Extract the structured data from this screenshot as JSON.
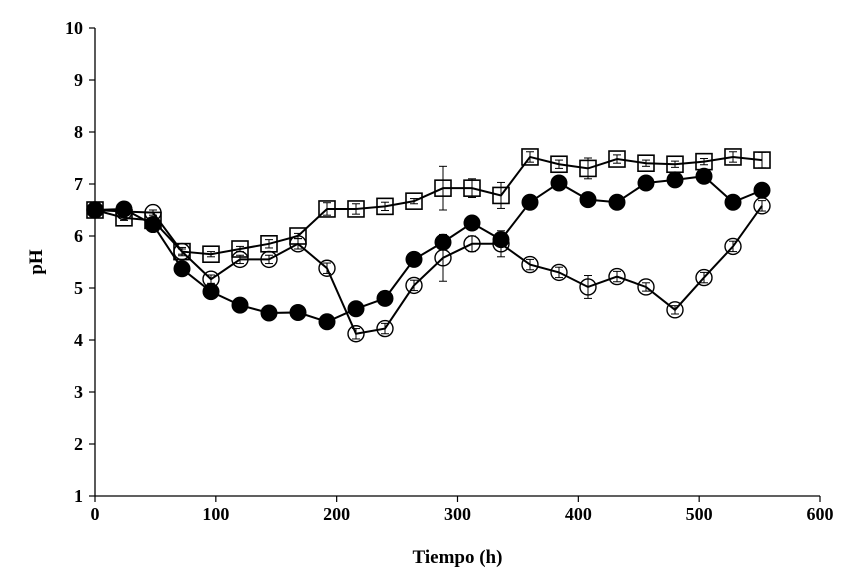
{
  "chart_data": {
    "type": "line",
    "title": "",
    "xlabel": "Tiempo (h)",
    "ylabel": "pH",
    "xlim": [
      0,
      600
    ],
    "ylim": [
      1,
      10
    ],
    "x_ticks": [
      0,
      100,
      200,
      300,
      400,
      500,
      600
    ],
    "y_ticks": [
      1,
      2,
      3,
      4,
      5,
      6,
      7,
      8,
      9,
      10
    ],
    "grid": false,
    "legend": "none",
    "series": [
      {
        "marker": "open-square",
        "color": "#000000",
        "x": [
          0,
          24,
          48,
          72,
          96,
          120,
          144,
          168,
          192,
          216,
          240,
          264,
          288,
          312,
          336,
          360,
          384,
          408,
          432,
          456,
          480,
          504,
          528,
          552
        ],
        "y": [
          6.5,
          6.35,
          6.3,
          5.7,
          5.65,
          5.75,
          5.85,
          6.0,
          6.52,
          6.52,
          6.57,
          6.67,
          6.92,
          6.92,
          6.78,
          7.52,
          7.38,
          7.3,
          7.48,
          7.4,
          7.38,
          7.43,
          7.52,
          7.46
        ],
        "err": [
          0.05,
          0.05,
          0.05,
          0.05,
          0.05,
          0.05,
          0.08,
          0.05,
          0.12,
          0.1,
          0.08,
          0.05,
          0.42,
          0.18,
          0.25,
          0.1,
          0.08,
          0.2,
          0.08,
          0.06,
          0.06,
          0.06,
          0.1,
          0.15
        ]
      },
      {
        "marker": "filled-circle",
        "color": "#000000",
        "x": [
          0,
          24,
          48,
          72,
          96,
          120,
          144,
          168,
          192,
          216,
          240,
          264,
          288,
          312,
          336,
          360,
          384,
          408,
          432,
          456,
          480,
          504,
          528,
          552
        ],
        "y": [
          6.5,
          6.52,
          6.22,
          5.37,
          4.93,
          4.67,
          4.52,
          4.53,
          4.35,
          4.6,
          4.8,
          5.55,
          5.88,
          6.25,
          5.93,
          6.65,
          7.02,
          6.7,
          6.65,
          7.02,
          7.08,
          7.15,
          6.65,
          6.88
        ]
      },
      {
        "marker": "open-circle",
        "color": "#000000",
        "x": [
          0,
          24,
          48,
          72,
          96,
          120,
          144,
          168,
          192,
          216,
          240,
          264,
          288,
          312,
          336,
          360,
          384,
          408,
          432,
          456,
          480,
          504,
          528,
          552
        ],
        "y": [
          6.5,
          6.47,
          6.45,
          5.7,
          5.17,
          5.55,
          5.55,
          5.85,
          5.38,
          4.12,
          4.22,
          5.05,
          5.58,
          5.85,
          5.85,
          5.45,
          5.3,
          5.02,
          5.22,
          5.02,
          4.58,
          5.2,
          5.8,
          6.58
        ],
        "err": [
          0.05,
          0.05,
          0.05,
          0.08,
          0.08,
          0.08,
          0.08,
          0.1,
          0.1,
          0.1,
          0.1,
          0.1,
          0.45,
          0.15,
          0.25,
          0.1,
          0.1,
          0.22,
          0.1,
          0.08,
          0.08,
          0.1,
          0.1,
          0.1
        ]
      }
    ]
  }
}
